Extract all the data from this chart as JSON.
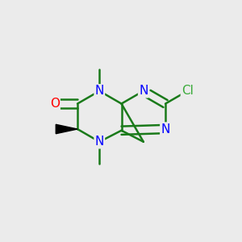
{
  "bg_color": "#ebebeb",
  "bond_color": "#1a7a1a",
  "bond_width": 1.8,
  "atom_labels": {
    "N5": {
      "text": "N",
      "color": "blue",
      "fs": 11
    },
    "N8": {
      "text": "N",
      "color": "blue",
      "fs": 11
    },
    "N3": {
      "text": "N",
      "color": "blue",
      "fs": 11
    },
    "N1": {
      "text": "N",
      "color": "blue",
      "fs": 11
    },
    "O": {
      "text": "O",
      "color": "red",
      "fs": 11
    },
    "Cl": {
      "text": "Cl",
      "color": "#3aaa3a",
      "fs": 11
    }
  },
  "methyl_texts": {
    "Me5": {
      "ha": "center",
      "va": "bottom"
    },
    "Me8": {
      "ha": "center",
      "va": "top"
    },
    "Me7": {
      "ha": "right",
      "va": "center"
    }
  }
}
